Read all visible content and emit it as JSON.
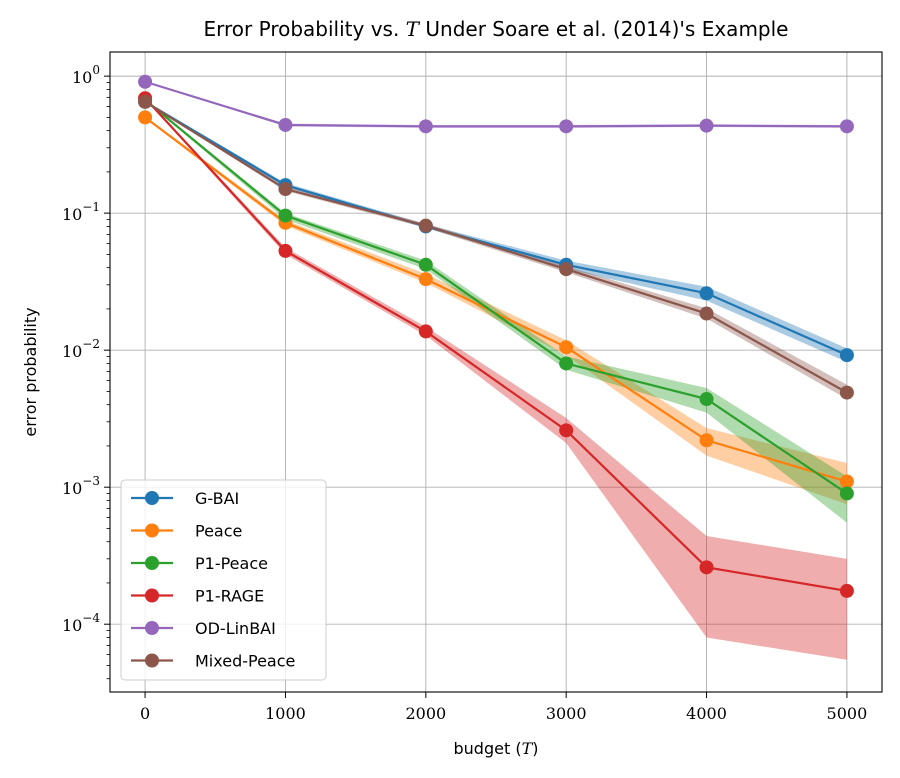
{
  "chart_data": {
    "type": "line",
    "title": "Error Probability vs. T Under Soare et al. (2014)'s Example",
    "title_parts": [
      "Error Probability vs. ",
      "T",
      " Under Soare et al. (2014)'s Example"
    ],
    "xlabel_parts": [
      "budget (",
      "T",
      ")"
    ],
    "ylabel": "error probability",
    "yscale": "log",
    "xlim": [
      -250,
      5250
    ],
    "ylim": [
      3.2e-05,
      1.5
    ],
    "grid": true,
    "legend_position": "lower-left",
    "x": [
      0,
      1000,
      2000,
      3000,
      4000,
      5000
    ],
    "xticks": [
      0,
      1000,
      2000,
      3000,
      4000,
      5000
    ],
    "xtick_labels": [
      "0",
      "1000",
      "2000",
      "3000",
      "4000",
      "5000"
    ],
    "yticks": [
      {
        "value": 1,
        "base": "10",
        "exp": "0"
      },
      {
        "value": 0.1,
        "base": "10",
        "exp": "−1"
      },
      {
        "value": 0.01,
        "base": "10",
        "exp": "−2"
      },
      {
        "value": 0.001,
        "base": "10",
        "exp": "−3"
      },
      {
        "value": 0.0001,
        "base": "10",
        "exp": "−4"
      }
    ],
    "series": [
      {
        "name": "G-BAI",
        "color": "#1f77b4",
        "values": [
          0.65,
          0.16,
          0.08,
          0.042,
          0.026,
          0.0092
        ],
        "lower": [
          0.64,
          0.155,
          0.078,
          0.039,
          0.023,
          0.0082
        ],
        "upper": [
          0.66,
          0.166,
          0.083,
          0.045,
          0.029,
          0.0103
        ]
      },
      {
        "name": "Peace",
        "color": "#ff7f0e",
        "values": [
          0.5,
          0.085,
          0.033,
          0.0105,
          0.0022,
          0.0011
        ],
        "lower": [
          0.49,
          0.081,
          0.031,
          0.0092,
          0.0017,
          0.00075
        ],
        "upper": [
          0.51,
          0.089,
          0.036,
          0.0118,
          0.0027,
          0.0015
        ]
      },
      {
        "name": "P1-Peace",
        "color": "#2ca02c",
        "values": [
          0.67,
          0.096,
          0.042,
          0.008,
          0.0044,
          0.0009
        ],
        "lower": [
          0.66,
          0.09,
          0.039,
          0.0072,
          0.0035,
          0.00055
        ],
        "upper": [
          0.68,
          0.1,
          0.045,
          0.009,
          0.0053,
          0.0012
        ]
      },
      {
        "name": "P1-RAGE",
        "color": "#d62728",
        "values": [
          0.69,
          0.053,
          0.0137,
          0.0026,
          0.00026,
          0.000175
        ],
        "lower": [
          0.68,
          0.05,
          0.0128,
          0.0021,
          8e-05,
          5.5e-05
        ],
        "upper": [
          0.7,
          0.056,
          0.0148,
          0.0032,
          0.00044,
          0.0003
        ]
      },
      {
        "name": "OD-LinBAI",
        "color": "#9467bd",
        "values": [
          0.91,
          0.44,
          0.43,
          0.43,
          0.435,
          0.43
        ],
        "lower": [
          0.905,
          0.43,
          0.42,
          0.42,
          0.425,
          0.42
        ],
        "upper": [
          0.915,
          0.45,
          0.44,
          0.44,
          0.445,
          0.44
        ]
      },
      {
        "name": "Mixed-Peace",
        "color": "#8c564b",
        "values": [
          0.65,
          0.15,
          0.081,
          0.039,
          0.0185,
          0.0049
        ],
        "lower": [
          0.64,
          0.145,
          0.078,
          0.037,
          0.017,
          0.0044
        ],
        "upper": [
          0.66,
          0.156,
          0.084,
          0.041,
          0.0202,
          0.0056
        ]
      }
    ]
  }
}
